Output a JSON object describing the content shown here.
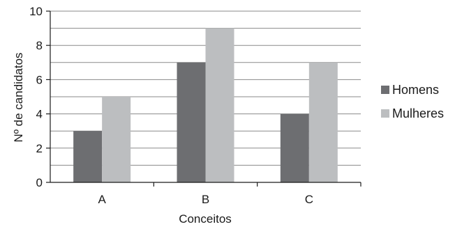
{
  "chart_data": {
    "type": "bar",
    "title": "",
    "xlabel": "Conceitos",
    "ylabel": "Nº de candidatos",
    "categories": [
      "A",
      "B",
      "C"
    ],
    "series": [
      {
        "name": "Homens",
        "values": [
          3,
          7,
          4
        ],
        "color": "#6d6e71"
      },
      {
        "name": "Mulheres",
        "values": [
          5,
          9,
          7
        ],
        "color": "#bcbec0"
      }
    ],
    "ylim": [
      0,
      10
    ],
    "yticks": [
      "0",
      "2",
      "4",
      "6",
      "8",
      "10"
    ],
    "grid": true,
    "legend": "right"
  }
}
